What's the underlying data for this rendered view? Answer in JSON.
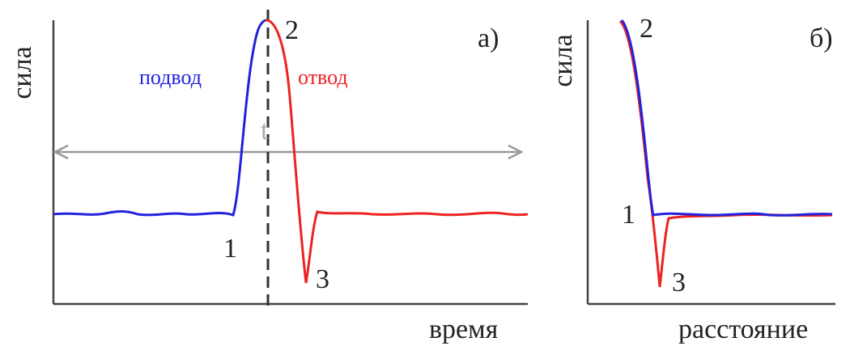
{
  "panel_a": {
    "y_label": "сила",
    "tag": "а)",
    "approach": "подвод",
    "retract": "отвод",
    "time_mark": "t",
    "point_1": "1",
    "point_2": "2",
    "point_3": "3",
    "x_label": "время"
  },
  "panel_b": {
    "y_label": "сила",
    "tag": "б)",
    "point_2": "2",
    "point_1": "1",
    "point_3": "3",
    "x_label": "расстояние"
  }
}
